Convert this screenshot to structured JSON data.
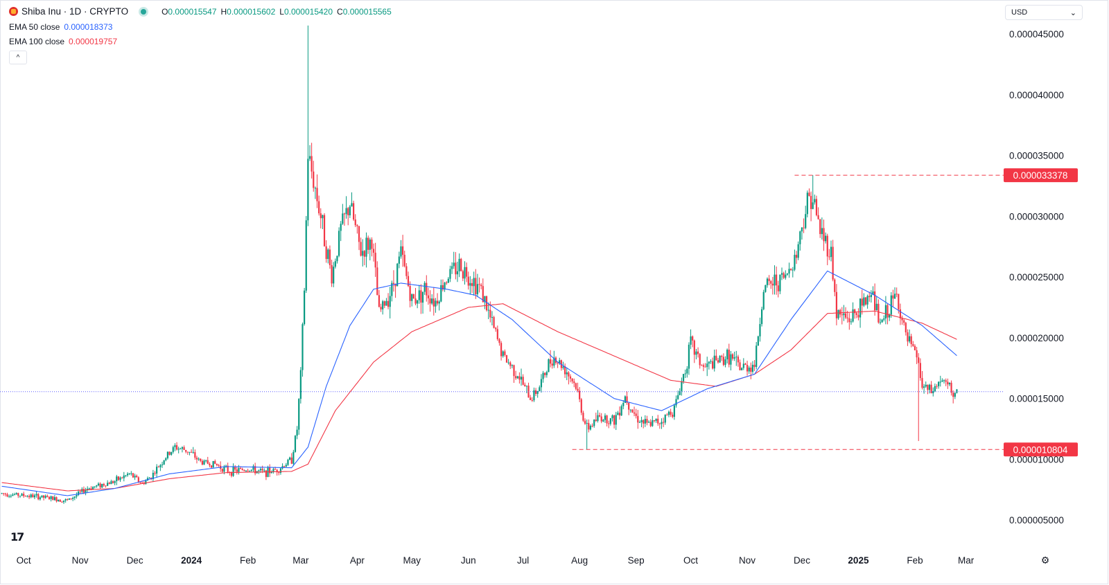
{
  "header": {
    "title": "Shiba Inu · 1D · CRYPTO",
    "ohlc": [
      {
        "label": "O",
        "value": "0.000015547"
      },
      {
        "label": "H",
        "value": "0.000015602"
      },
      {
        "label": "L",
        "value": "0.000015420"
      },
      {
        "label": "C",
        "value": "0.000015565"
      }
    ],
    "currency": "USD",
    "currency_arrow": "⌄",
    "collapse_glyph": "^",
    "settings_icon": "gear-icon",
    "settings_glyph": "⚙",
    "brand_mark": "17"
  },
  "indicators": [
    {
      "name": "EMA 50 close",
      "value": "0.000018373",
      "color": "#2962ff"
    },
    {
      "name": "EMA 100 close",
      "value": "0.000019757",
      "color": "#f23645"
    }
  ],
  "colors": {
    "up": "#089981",
    "down": "#f23645",
    "ema50": "#2962ff",
    "ema100": "#f23645",
    "level": "#f23645",
    "current": "#5b5bff"
  },
  "chart_data": {
    "type": "candlestick",
    "title": "Shiba Inu · 1D · CRYPTO",
    "xlabel": "",
    "ylabel": "",
    "ylim": [
      2.5e-06,
      4.78e-05
    ],
    "y_ticks": [
      {
        "value": 5e-06,
        "label": "0.000005000"
      },
      {
        "value": 1e-05,
        "label": "0.000010000"
      },
      {
        "value": 1.5e-05,
        "label": "0.000015000"
      },
      {
        "value": 2e-05,
        "label": "0.000020000"
      },
      {
        "value": 2.5e-05,
        "label": "0.000025000"
      },
      {
        "value": 3e-05,
        "label": "0.000030000"
      },
      {
        "value": 3.5e-05,
        "label": "0.000035000"
      },
      {
        "value": 4e-05,
        "label": "0.000040000"
      },
      {
        "value": 4.5e-05,
        "label": "0.000045000"
      }
    ],
    "x_ticks": [
      {
        "date": "2023-10-01",
        "label": "Oct",
        "bold": false
      },
      {
        "date": "2023-11-01",
        "label": "Nov",
        "bold": false
      },
      {
        "date": "2023-12-01",
        "label": "Dec",
        "bold": false
      },
      {
        "date": "2024-01-01",
        "label": "2024",
        "bold": true
      },
      {
        "date": "2024-02-01",
        "label": "Feb",
        "bold": false
      },
      {
        "date": "2024-03-01",
        "label": "Mar",
        "bold": false
      },
      {
        "date": "2024-04-01",
        "label": "Apr",
        "bold": false
      },
      {
        "date": "2024-05-01",
        "label": "May",
        "bold": false
      },
      {
        "date": "2024-06-01",
        "label": "Jun",
        "bold": false
      },
      {
        "date": "2024-07-01",
        "label": "Jul",
        "bold": false
      },
      {
        "date": "2024-08-01",
        "label": "Aug",
        "bold": false
      },
      {
        "date": "2024-09-01",
        "label": "Sep",
        "bold": false
      },
      {
        "date": "2024-10-01",
        "label": "Oct",
        "bold": false
      },
      {
        "date": "2024-11-01",
        "label": "Nov",
        "bold": false
      },
      {
        "date": "2024-12-01",
        "label": "Dec",
        "bold": false
      },
      {
        "date": "2025-01-01",
        "label": "2025",
        "bold": true
      },
      {
        "date": "2025-02-01",
        "label": "Feb",
        "bold": false
      },
      {
        "date": "2025-03-01",
        "label": "Mar",
        "bold": false
      }
    ],
    "x_range": [
      "2023-09-18",
      "2025-03-08"
    ],
    "price_keypoints": [
      [
        "2023-09-18",
        7.2e-06
      ],
      [
        "2023-10-10",
        6.9e-06
      ],
      [
        "2023-10-25",
        6.6e-06
      ],
      [
        "2023-11-05",
        7.6e-06
      ],
      [
        "2023-11-20",
        8.2e-06
      ],
      [
        "2023-11-28",
        8.8e-06
      ],
      [
        "2023-12-05",
        8e-06
      ],
      [
        "2023-12-10",
        8.6e-06
      ],
      [
        "2023-12-17",
        1e-05
      ],
      [
        "2023-12-23",
        1.1e-05
      ],
      [
        "2023-12-30",
        1.07e-05
      ],
      [
        "2024-01-06",
        9.8e-06
      ],
      [
        "2024-01-14",
        9.6e-06
      ],
      [
        "2024-01-22",
        9e-06
      ],
      [
        "2024-02-01",
        9.2e-06
      ],
      [
        "2024-02-10",
        8.9e-06
      ],
      [
        "2024-02-18",
        9.2e-06
      ],
      [
        "2024-02-25",
        1e-05
      ],
      [
        "2024-02-28",
        1.25e-05
      ],
      [
        "2024-03-01",
        1.7e-05
      ],
      [
        "2024-03-03",
        2.4e-05
      ],
      [
        "2024-03-05",
        3.5e-05
      ],
      [
        "2024-03-08",
        3.3e-05
      ],
      [
        "2024-03-12",
        3e-05
      ],
      [
        "2024-03-18",
        2.5e-05
      ],
      [
        "2024-03-23",
        2.9e-05
      ],
      [
        "2024-03-28",
        3.1e-05
      ],
      [
        "2024-04-03",
        2.7e-05
      ],
      [
        "2024-04-09",
        2.8e-05
      ],
      [
        "2024-04-13",
        2.2e-05
      ],
      [
        "2024-04-20",
        2.4e-05
      ],
      [
        "2024-04-25",
        2.7e-05
      ],
      [
        "2024-05-01",
        2.3e-05
      ],
      [
        "2024-05-08",
        2.4e-05
      ],
      [
        "2024-05-14",
        2.3e-05
      ],
      [
        "2024-05-20",
        2.5e-05
      ],
      [
        "2024-05-27",
        2.6e-05
      ],
      [
        "2024-06-02",
        2.5e-05
      ],
      [
        "2024-06-08",
        2.4e-05
      ],
      [
        "2024-06-12",
        2.2e-05
      ],
      [
        "2024-06-20",
        1.85e-05
      ],
      [
        "2024-06-28",
        1.7e-05
      ],
      [
        "2024-07-05",
        1.5e-05
      ],
      [
        "2024-07-10",
        1.6e-05
      ],
      [
        "2024-07-17",
        1.85e-05
      ],
      [
        "2024-07-24",
        1.75e-05
      ],
      [
        "2024-07-30",
        1.6e-05
      ],
      [
        "2024-08-03",
        1.35e-05
      ],
      [
        "2024-08-05",
        1.25e-05
      ],
      [
        "2024-08-12",
        1.35e-05
      ],
      [
        "2024-08-20",
        1.32e-05
      ],
      [
        "2024-08-26",
        1.52e-05
      ],
      [
        "2024-09-01",
        1.35e-05
      ],
      [
        "2024-09-07",
        1.28e-05
      ],
      [
        "2024-09-15",
        1.32e-05
      ],
      [
        "2024-09-22",
        1.42e-05
      ],
      [
        "2024-09-28",
        1.75e-05
      ],
      [
        "2024-10-01",
        1.95e-05
      ],
      [
        "2024-10-08",
        1.75e-05
      ],
      [
        "2024-10-15",
        1.8e-05
      ],
      [
        "2024-10-22",
        1.85e-05
      ],
      [
        "2024-10-28",
        1.75e-05
      ],
      [
        "2024-11-05",
        1.78e-05
      ],
      [
        "2024-11-10",
        2.4e-05
      ],
      [
        "2024-11-15",
        2.45e-05
      ],
      [
        "2024-11-22",
        2.5e-05
      ],
      [
        "2024-11-28",
        2.7e-05
      ],
      [
        "2024-12-02",
        3e-05
      ],
      [
        "2024-12-06",
        3.2e-05
      ],
      [
        "2024-12-09",
        3e-05
      ],
      [
        "2024-12-12",
        2.85e-05
      ],
      [
        "2024-12-17",
        2.7e-05
      ],
      [
        "2024-12-20",
        2.2e-05
      ],
      [
        "2024-12-27",
        2.15e-05
      ],
      [
        "2025-01-03",
        2.25e-05
      ],
      [
        "2025-01-08",
        2.4e-05
      ],
      [
        "2025-01-13",
        2.1e-05
      ],
      [
        "2025-01-18",
        2.25e-05
      ],
      [
        "2025-01-22",
        2.35e-05
      ],
      [
        "2025-01-27",
        2e-05
      ],
      [
        "2025-02-02",
        1.85e-05
      ],
      [
        "2025-02-05",
        1.6e-05
      ],
      [
        "2025-02-10",
        1.55e-05
      ],
      [
        "2025-02-15",
        1.65e-05
      ],
      [
        "2025-02-19",
        1.6e-05
      ],
      [
        "2025-02-22",
        1.55e-05
      ]
    ],
    "wick_extremes": [
      {
        "date": "2024-03-05",
        "high": 4.57e-05
      },
      {
        "date": "2024-12-07",
        "high": 3.338e-05
      },
      {
        "date": "2024-08-05",
        "low": 1.0804e-05
      },
      {
        "date": "2025-02-03",
        "low": 1.15e-05
      }
    ],
    "ema50_keypoints": [
      [
        "2023-09-18",
        7.8e-06
      ],
      [
        "2023-10-25",
        7e-06
      ],
      [
        "2023-11-20",
        7.6e-06
      ],
      [
        "2023-12-20",
        8.8e-06
      ],
      [
        "2024-01-20",
        9.4e-06
      ],
      [
        "2024-02-25",
        9.3e-06
      ],
      [
        "2024-03-05",
        1.1e-05
      ],
      [
        "2024-03-15",
        1.6e-05
      ],
      [
        "2024-03-28",
        2.1e-05
      ],
      [
        "2024-04-10",
        2.4e-05
      ],
      [
        "2024-04-25",
        2.45e-05
      ],
      [
        "2024-05-20",
        2.4e-05
      ],
      [
        "2024-06-05",
        2.35e-05
      ],
      [
        "2024-06-25",
        2.15e-05
      ],
      [
        "2024-07-20",
        1.8e-05
      ],
      [
        "2024-08-20",
        1.5e-05
      ],
      [
        "2024-09-15",
        1.4e-05
      ],
      [
        "2024-10-10",
        1.58e-05
      ],
      [
        "2024-11-05",
        1.7e-05
      ],
      [
        "2024-11-25",
        2.15e-05
      ],
      [
        "2024-12-15",
        2.55e-05
      ],
      [
        "2025-01-10",
        2.35e-05
      ],
      [
        "2025-02-05",
        2.1e-05
      ],
      [
        "2025-02-25",
        1.84e-05
      ]
    ],
    "ema100_keypoints": [
      [
        "2023-09-18",
        8.1e-06
      ],
      [
        "2023-10-25",
        7.4e-06
      ],
      [
        "2023-11-20",
        7.6e-06
      ],
      [
        "2023-12-20",
        8.4e-06
      ],
      [
        "2024-01-20",
        8.9e-06
      ],
      [
        "2024-02-25",
        9e-06
      ],
      [
        "2024-03-05",
        9.6e-06
      ],
      [
        "2024-03-20",
        1.4e-05
      ],
      [
        "2024-04-10",
        1.8e-05
      ],
      [
        "2024-05-01",
        2.05e-05
      ],
      [
        "2024-06-01",
        2.25e-05
      ],
      [
        "2024-06-20",
        2.28e-05
      ],
      [
        "2024-07-20",
        2.05e-05
      ],
      [
        "2024-08-20",
        1.85e-05
      ],
      [
        "2024-09-20",
        1.65e-05
      ],
      [
        "2024-10-15",
        1.6e-05
      ],
      [
        "2024-11-05",
        1.7e-05
      ],
      [
        "2024-11-25",
        1.9e-05
      ],
      [
        "2024-12-15",
        2.2e-05
      ],
      [
        "2025-01-10",
        2.22e-05
      ],
      [
        "2025-02-05",
        2.12e-05
      ],
      [
        "2025-02-25",
        1.98e-05
      ]
    ],
    "horizontal_levels": [
      {
        "value": 3.3378e-05,
        "label": "0.000033378",
        "from": "2024-11-27"
      },
      {
        "value": 1.0804e-05,
        "label": "0.000010804",
        "from": "2024-07-28"
      }
    ],
    "current_price": 1.5565e-05,
    "grid": false,
    "legend": "top-left"
  }
}
